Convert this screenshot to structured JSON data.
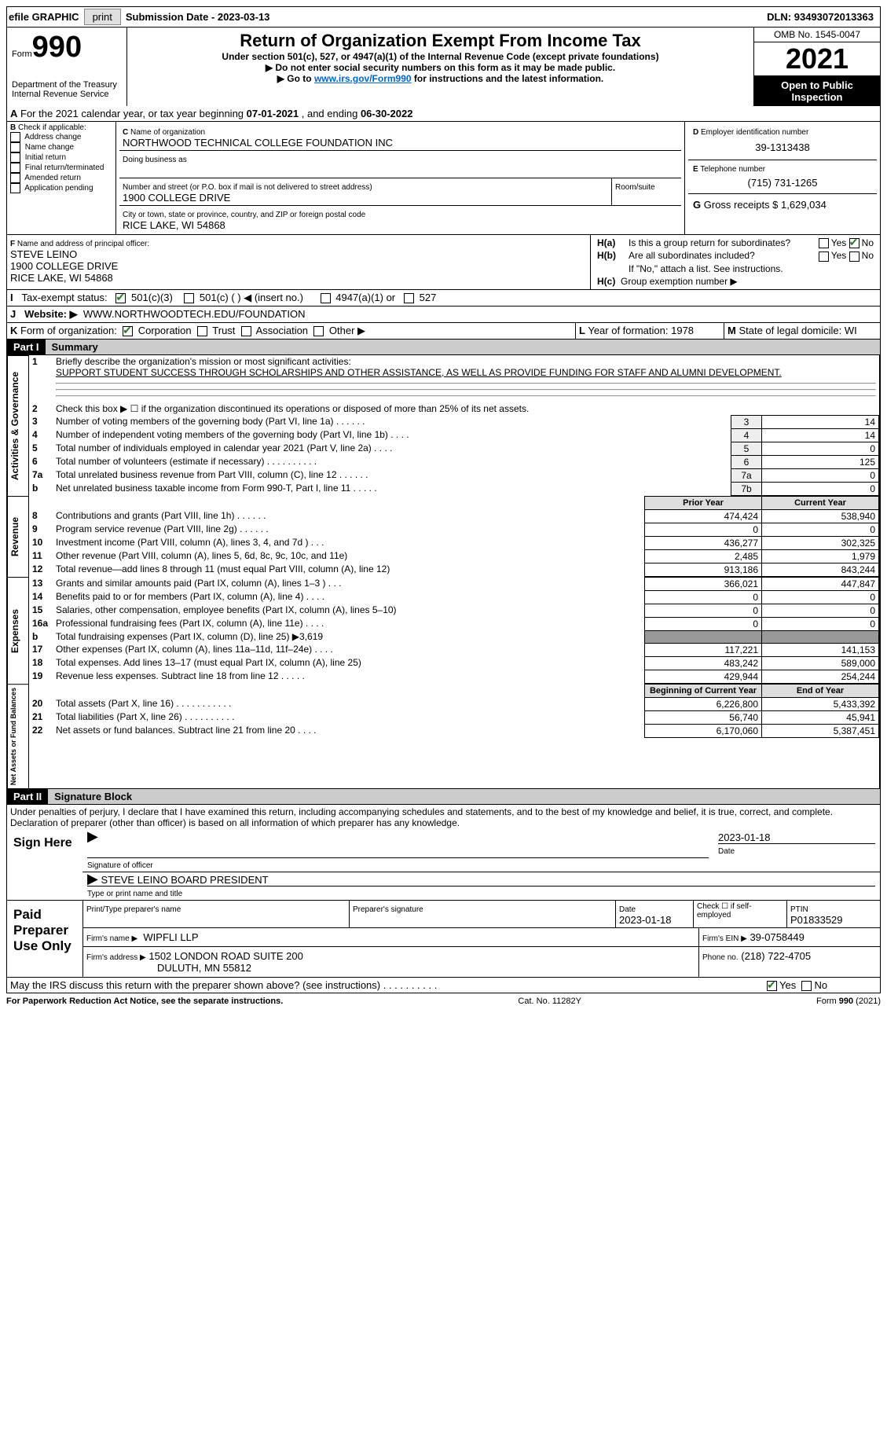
{
  "topbar": {
    "efile": "efile GRAPHIC",
    "print": "print",
    "sub_label": "Submission Date - ",
    "sub_date": "2023-03-13",
    "dln_label": "DLN: ",
    "dln": "93493072013363"
  },
  "header": {
    "form_label": "Form",
    "form_num": "990",
    "dept": "Department of the Treasury\nInternal Revenue Service",
    "title": "Return of Organization Exempt From Income Tax",
    "subtitle": "Under section 501(c), 527, or 4947(a)(1) of the Internal Revenue Code (except private foundations)",
    "instr1": "▶ Do not enter social security numbers on this form as it may be made public.",
    "instr2_a": "▶ Go to ",
    "instr2_link": "www.irs.gov/Form990",
    "instr2_b": " for instructions and the latest information.",
    "omb": "OMB No. 1545-0047",
    "taxyear": "2021",
    "inspection": "Open to Public Inspection"
  },
  "a": {
    "text_a": "For the 2021 calendar year, or tax year beginning ",
    "begin": "07-01-2021",
    "text_b": " , and ending ",
    "end": "06-30-2022"
  },
  "b": {
    "label": "Check if applicable:",
    "opts": [
      "Address change",
      "Name change",
      "Initial return",
      "Final return/terminated",
      "Amended return",
      "Application pending"
    ]
  },
  "c": {
    "name_label": "Name of organization",
    "name": "NORTHWOOD TECHNICAL COLLEGE FOUNDATION INC",
    "dba_label": "Doing business as",
    "street_label": "Number and street (or P.O. box if mail is not delivered to street address)",
    "street": "1900 COLLEGE DRIVE",
    "room_label": "Room/suite",
    "city_label": "City or town, state or province, country, and ZIP or foreign postal code",
    "city": "RICE LAKE, WI  54868"
  },
  "d": {
    "label": "Employer identification number",
    "val": "39-1313438"
  },
  "e": {
    "label": "Telephone number",
    "val": "(715) 731-1265"
  },
  "g": {
    "label": "Gross receipts $",
    "val": "1,629,034"
  },
  "f": {
    "label": "Name and address of principal officer:",
    "name": "STEVE LEINO",
    "street": "1900 COLLEGE DRIVE",
    "city": "RICE LAKE, WI  54868"
  },
  "h": {
    "a": "Is this a group return for subordinates?",
    "b": "Are all subordinates included?",
    "b2": "If \"No,\" attach a list. See instructions.",
    "c": "Group exemption number ▶",
    "yes": "Yes",
    "no": "No"
  },
  "i": {
    "label": "Tax-exempt status:",
    "o1": "501(c)(3)",
    "o2": "501(c) (  ) ◀ (insert no.)",
    "o3": "4947(a)(1) or",
    "o4": "527"
  },
  "j": {
    "label": "Website: ▶",
    "val": "WWW.NORTHWOODTECH.EDU/FOUNDATION"
  },
  "k": {
    "label": "Form of organization:",
    "o1": "Corporation",
    "o2": "Trust",
    "o3": "Association",
    "o4": "Other ▶"
  },
  "l": {
    "label": "Year of formation:",
    "val": "1978"
  },
  "m": {
    "label": "State of legal domicile:",
    "val": "WI"
  },
  "part1": {
    "header": "Part I",
    "title": "Summary",
    "l1_label": "Briefly describe the organization's mission or most significant activities:",
    "l1_val": "SUPPORT STUDENT SUCCESS THROUGH SCHOLARSHIPS AND OTHER ASSISTANCE, AS WELL AS PROVIDE FUNDING FOR STAFF AND ALUMNI DEVELOPMENT.",
    "l2": "Check this box ▶ ☐ if the organization discontinued its operations or disposed of more than 25% of its net assets.",
    "vg": "Activities & Governance",
    "vr": "Revenue",
    "ve": "Expenses",
    "vn": "Net Assets or Fund Balances",
    "py_header": "Prior Year",
    "cy_header": "Current Year",
    "bcy_header": "Beginning of Current Year",
    "eoy_header": "End of Year",
    "rows_gov": [
      {
        "n": "3",
        "t": "Number of voting members of the governing body (Part VI, line 1a)   .    .    .    .    .    .",
        "num": "3",
        "v": "14"
      },
      {
        "n": "4",
        "t": "Number of independent voting members of the governing body (Part VI, line 1b)   .    .    .    .",
        "num": "4",
        "v": "14"
      },
      {
        "n": "5",
        "t": "Total number of individuals employed in calendar year 2021 (Part V, line 2a)   .    .    .    .",
        "num": "5",
        "v": "0"
      },
      {
        "n": "6",
        "t": "Total number of volunteers (estimate if necessary)   .    .    .    .    .    .    .    .    .    .",
        "num": "6",
        "v": "125"
      },
      {
        "n": "7a",
        "t": "Total unrelated business revenue from Part VIII, column (C), line 12   .    .    .    .    .    .",
        "num": "7a",
        "v": "0"
      },
      {
        "n": "b",
        "t": "Net unrelated business taxable income from Form 990-T, Part I, line 11   .    .    .    .    .",
        "num": "7b",
        "v": "0"
      }
    ],
    "rows_rev": [
      {
        "n": "8",
        "t": "Contributions and grants (Part VIII, line 1h)   .    .    .    .    .    .",
        "py": "474,424",
        "cy": "538,940"
      },
      {
        "n": "9",
        "t": "Program service revenue (Part VIII, line 2g)   .    .    .    .    .    .",
        "py": "0",
        "cy": "0"
      },
      {
        "n": "10",
        "t": "Investment income (Part VIII, column (A), lines 3, 4, and 7d )   .    .    .",
        "py": "436,277",
        "cy": "302,325"
      },
      {
        "n": "11",
        "t": "Other revenue (Part VIII, column (A), lines 5, 6d, 8c, 9c, 10c, and 11e)",
        "py": "2,485",
        "cy": "1,979"
      },
      {
        "n": "12",
        "t": "Total revenue—add lines 8 through 11 (must equal Part VIII, column (A), line 12)",
        "py": "913,186",
        "cy": "843,244"
      }
    ],
    "rows_exp": [
      {
        "n": "13",
        "t": "Grants and similar amounts paid (Part IX, column (A), lines 1–3 )   .    .    .",
        "py": "366,021",
        "cy": "447,847"
      },
      {
        "n": "14",
        "t": "Benefits paid to or for members (Part IX, column (A), line 4)   .    .    .    .",
        "py": "0",
        "cy": "0"
      },
      {
        "n": "15",
        "t": "Salaries, other compensation, employee benefits (Part IX, column (A), lines 5–10)",
        "py": "0",
        "cy": "0"
      },
      {
        "n": "16a",
        "t": "Professional fundraising fees (Part IX, column (A), line 11e)   .    .    .    .",
        "py": "0",
        "cy": "0"
      },
      {
        "n": "b",
        "t": "Total fundraising expenses (Part IX, column (D), line 25) ▶3,619",
        "py": "",
        "cy": "",
        "shaded": true
      },
      {
        "n": "17",
        "t": "Other expenses (Part IX, column (A), lines 11a–11d, 11f–24e)   .    .    .    .",
        "py": "117,221",
        "cy": "141,153"
      },
      {
        "n": "18",
        "t": "Total expenses. Add lines 13–17 (must equal Part IX, column (A), line 25)",
        "py": "483,242",
        "cy": "589,000"
      },
      {
        "n": "19",
        "t": "Revenue less expenses. Subtract line 18 from line 12   .    .    .    .    .",
        "py": "429,944",
        "cy": "254,244"
      }
    ],
    "rows_net": [
      {
        "n": "20",
        "t": "Total assets (Part X, line 16)   .    .    .    .    .    .    .    .    .    .    .",
        "py": "6,226,800",
        "cy": "5,433,392"
      },
      {
        "n": "21",
        "t": "Total liabilities (Part X, line 26)   .    .    .    .    .    .    .    .    .    .",
        "py": "56,740",
        "cy": "45,941"
      },
      {
        "n": "22",
        "t": "Net assets or fund balances. Subtract line 21 from line 20   .    .    .    .",
        "py": "6,170,060",
        "cy": "5,387,451"
      }
    ]
  },
  "part2": {
    "header": "Part II",
    "title": "Signature Block",
    "decl": "Under penalties of perjury, I declare that I have examined this return, including accompanying schedules and statements, and to the best of my knowledge and belief, it is true, correct, and complete. Declaration of preparer (other than officer) is based on all information of which preparer has any knowledge.",
    "sign_here": "Sign Here",
    "sig_officer": "Signature of officer",
    "sig_date_label": "Date",
    "sig_date": "2023-01-18",
    "sig_name": "STEVE LEINO  BOARD PRESIDENT",
    "sig_name_label": "Type or print name and title",
    "paid": "Paid Preparer Use Only",
    "prep_name_label": "Print/Type preparer's name",
    "prep_sig_label": "Preparer's signature",
    "prep_date_label": "Date",
    "prep_date": "2023-01-18",
    "prep_check": "Check ☐ if self-employed",
    "ptin_label": "PTIN",
    "ptin": "P01833529",
    "firm_name_label": "Firm's name    ▶",
    "firm_name": "WIPFLI LLP",
    "firm_ein_label": "Firm's EIN ▶",
    "firm_ein": "39-0758449",
    "firm_addr_label": "Firm's address ▶",
    "firm_addr1": "1502 LONDON ROAD SUITE 200",
    "firm_addr2": "DULUTH, MN  55812",
    "firm_phone_label": "Phone no.",
    "firm_phone": "(218) 722-4705",
    "discuss": "May the IRS discuss this return with the preparer shown above? (see instructions)   .    .    .    .    .    .    .    .    .    ."
  },
  "footer": {
    "left": "For Paperwork Reduction Act Notice, see the separate instructions.",
    "center": "Cat. No. 11282Y",
    "right": "Form 990 (2021)"
  }
}
